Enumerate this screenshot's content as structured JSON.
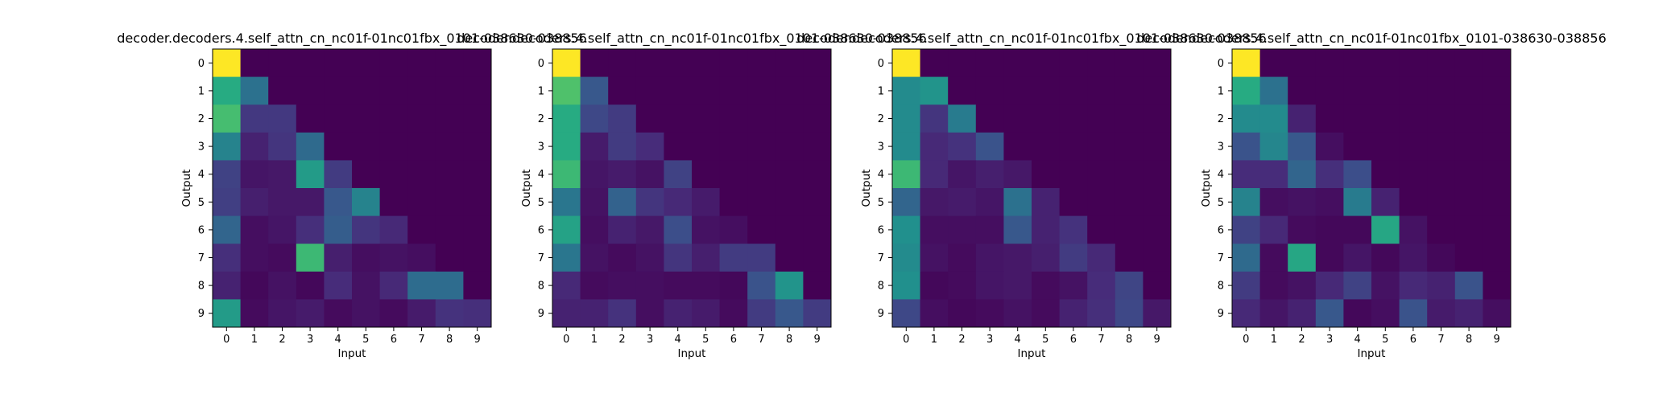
{
  "chart_data": [
    {
      "type": "heatmap",
      "title": "decoder.decoders.4.self_attn_cn_nc01f-01nc01fbx_0101-038630-038856",
      "xlabel": "Input",
      "ylabel": "Output",
      "x_ticks": [
        "0",
        "1",
        "2",
        "3",
        "4",
        "5",
        "6",
        "7",
        "8",
        "9"
      ],
      "y_ticks": [
        "0",
        "1",
        "2",
        "3",
        "4",
        "5",
        "6",
        "7",
        "8",
        "9"
      ],
      "colormap": "viridis",
      "values": [
        [
          1.0,
          0,
          0,
          0,
          0,
          0,
          0,
          0,
          0,
          0
        ],
        [
          0.62,
          0.38,
          0,
          0,
          0,
          0,
          0,
          0,
          0,
          0
        ],
        [
          0.7,
          0.17,
          0.17,
          0,
          0,
          0,
          0,
          0,
          0,
          0
        ],
        [
          0.45,
          0.1,
          0.16,
          0.35,
          0,
          0,
          0,
          0,
          0,
          0
        ],
        [
          0.2,
          0.06,
          0.07,
          0.55,
          0.18,
          0,
          0,
          0,
          0,
          0
        ],
        [
          0.19,
          0.09,
          0.07,
          0.07,
          0.28,
          0.45,
          0,
          0,
          0,
          0
        ],
        [
          0.33,
          0.04,
          0.06,
          0.14,
          0.3,
          0.16,
          0.12,
          0,
          0,
          0
        ],
        [
          0.14,
          0.04,
          0.03,
          0.68,
          0.09,
          0.04,
          0.05,
          0.04,
          0,
          0
        ],
        [
          0.1,
          0.02,
          0.05,
          0.02,
          0.13,
          0.05,
          0.12,
          0.36,
          0.36,
          0
        ],
        [
          0.55,
          0.03,
          0.06,
          0.08,
          0.03,
          0.05,
          0.03,
          0.08,
          0.15,
          0.14
        ]
      ]
    },
    {
      "type": "heatmap",
      "title": "decoder.decoders.4.self_attn_cn_nc01f-01nc01fbx_0101-038630-038856",
      "xlabel": "Input",
      "ylabel": "Output",
      "x_ticks": [
        "0",
        "1",
        "2",
        "3",
        "4",
        "5",
        "6",
        "7",
        "8",
        "9"
      ],
      "y_ticks": [
        "0",
        "1",
        "2",
        "3",
        "4",
        "5",
        "6",
        "7",
        "8",
        "9"
      ],
      "colormap": "viridis",
      "values": [
        [
          1.0,
          0,
          0,
          0,
          0,
          0,
          0,
          0,
          0,
          0
        ],
        [
          0.72,
          0.28,
          0,
          0,
          0,
          0,
          0,
          0,
          0,
          0
        ],
        [
          0.62,
          0.22,
          0.18,
          0,
          0,
          0,
          0,
          0,
          0,
          0
        ],
        [
          0.62,
          0.08,
          0.18,
          0.13,
          0,
          0,
          0,
          0,
          0,
          0
        ],
        [
          0.68,
          0.06,
          0.08,
          0.05,
          0.2,
          0,
          0,
          0,
          0,
          0
        ],
        [
          0.4,
          0.05,
          0.32,
          0.16,
          0.12,
          0.08,
          0,
          0,
          0,
          0
        ],
        [
          0.58,
          0.04,
          0.1,
          0.07,
          0.24,
          0.05,
          0.04,
          0,
          0,
          0
        ],
        [
          0.4,
          0.05,
          0.03,
          0.05,
          0.16,
          0.09,
          0.18,
          0.18,
          0,
          0
        ],
        [
          0.12,
          0.03,
          0.04,
          0.04,
          0.03,
          0.03,
          0.02,
          0.26,
          0.52,
          0
        ],
        [
          0.1,
          0.1,
          0.15,
          0.04,
          0.1,
          0.08,
          0.03,
          0.18,
          0.28,
          0.18
        ]
      ]
    },
    {
      "type": "heatmap",
      "title": "decoder.decoders.4.self_attn_cn_nc01f-01nc01fbx_0101-038630-038856",
      "xlabel": "Input",
      "ylabel": "Output",
      "x_ticks": [
        "0",
        "1",
        "2",
        "3",
        "4",
        "5",
        "6",
        "7",
        "8",
        "9"
      ],
      "y_ticks": [
        "0",
        "1",
        "2",
        "3",
        "4",
        "5",
        "6",
        "7",
        "8",
        "9"
      ],
      "colormap": "viridis",
      "values": [
        [
          1.0,
          0,
          0,
          0,
          0,
          0,
          0,
          0,
          0,
          0
        ],
        [
          0.48,
          0.52,
          0,
          0,
          0,
          0,
          0,
          0,
          0,
          0
        ],
        [
          0.48,
          0.16,
          0.42,
          0,
          0,
          0,
          0,
          0,
          0,
          0
        ],
        [
          0.48,
          0.12,
          0.15,
          0.26,
          0,
          0,
          0,
          0,
          0,
          0
        ],
        [
          0.68,
          0.12,
          0.06,
          0.09,
          0.07,
          0,
          0,
          0,
          0,
          0
        ],
        [
          0.33,
          0.07,
          0.08,
          0.06,
          0.38,
          0.1,
          0,
          0,
          0,
          0
        ],
        [
          0.5,
          0.04,
          0.04,
          0.04,
          0.28,
          0.1,
          0.15,
          0,
          0,
          0
        ],
        [
          0.48,
          0.05,
          0.03,
          0.06,
          0.07,
          0.09,
          0.18,
          0.12,
          0,
          0
        ],
        [
          0.5,
          0.02,
          0.03,
          0.06,
          0.07,
          0.03,
          0.05,
          0.13,
          0.21,
          0
        ],
        [
          0.22,
          0.04,
          0.02,
          0.03,
          0.05,
          0.03,
          0.1,
          0.14,
          0.22,
          0.07
        ]
      ]
    },
    {
      "type": "heatmap",
      "title": "decoder.decoders.4.self_attn_cn_nc01f-01nc01fbx_0101-038630-038856",
      "xlabel": "Input",
      "ylabel": "Output",
      "x_ticks": [
        "0",
        "1",
        "2",
        "3",
        "4",
        "5",
        "6",
        "7",
        "8",
        "9"
      ],
      "y_ticks": [
        "0",
        "1",
        "2",
        "3",
        "4",
        "5",
        "6",
        "7",
        "8",
        "9"
      ],
      "colormap": "viridis",
      "values": [
        [
          1.0,
          0,
          0,
          0,
          0,
          0,
          0,
          0,
          0,
          0
        ],
        [
          0.62,
          0.38,
          0,
          0,
          0,
          0,
          0,
          0,
          0,
          0
        ],
        [
          0.48,
          0.48,
          0.1,
          0,
          0,
          0,
          0,
          0,
          0,
          0
        ],
        [
          0.26,
          0.46,
          0.28,
          0.04,
          0,
          0,
          0,
          0,
          0,
          0
        ],
        [
          0.13,
          0.13,
          0.33,
          0.14,
          0.24,
          0,
          0,
          0,
          0,
          0
        ],
        [
          0.45,
          0.04,
          0.05,
          0.04,
          0.42,
          0.1,
          0,
          0,
          0,
          0
        ],
        [
          0.2,
          0.12,
          0.03,
          0.02,
          0.02,
          0.6,
          0.05,
          0,
          0,
          0
        ],
        [
          0.35,
          0.03,
          0.6,
          0.02,
          0.06,
          0.02,
          0.06,
          0.02,
          0,
          0
        ],
        [
          0.18,
          0.03,
          0.05,
          0.12,
          0.2,
          0.05,
          0.12,
          0.1,
          0.26,
          0
        ],
        [
          0.12,
          0.06,
          0.1,
          0.28,
          0.02,
          0.04,
          0.26,
          0.08,
          0.1,
          0.04
        ]
      ]
    }
  ]
}
